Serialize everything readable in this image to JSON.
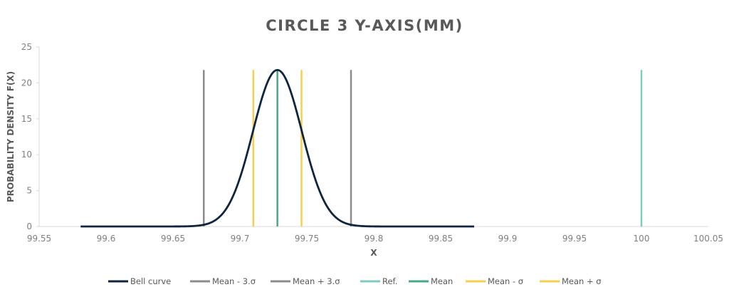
{
  "chart_data": {
    "type": "line",
    "title": "CIRCLE 3 Y-AXIS(MM)",
    "xlabel": "X",
    "ylabel": "PROBABILITY DENSITY F(X)",
    "xlim": [
      99.55,
      100.05
    ],
    "ylim": [
      0,
      25
    ],
    "xticks": [
      99.55,
      99.6,
      99.65,
      99.7,
      99.75,
      99.8,
      99.85,
      99.9,
      99.95,
      100,
      100.05
    ],
    "xtick_labels": [
      "99.55",
      "99.6",
      "99.65",
      "99.7",
      "99.75",
      "99.8",
      "99.85",
      "99.9",
      "99.95",
      "100",
      "100.05"
    ],
    "yticks": [
      0,
      5,
      10,
      15,
      20,
      25
    ],
    "ytick_labels": [
      "0",
      "5",
      "10",
      "15",
      "20",
      "25"
    ],
    "grid": false,
    "legend_position": "bottom",
    "bell_curve": {
      "name": "Bell curve",
      "mean": 99.728,
      "sigma": 0.0183,
      "x_range": [
        99.581,
        99.875
      ],
      "color": "#10263f"
    },
    "vertical_lines": [
      {
        "name": "Mean - 3.σ",
        "x": 99.673,
        "height": 21.8,
        "color": "#8c8c8c"
      },
      {
        "name": "Mean + 3.σ",
        "x": 99.783,
        "height": 21.8,
        "color": "#8c8c8c"
      },
      {
        "name": "Ref.",
        "x": 100,
        "height": 21.8,
        "color": "#7fcbc1"
      },
      {
        "name": "Mean",
        "x": 99.728,
        "height": 21.8,
        "color": "#4aa985"
      },
      {
        "name": "Mean - σ",
        "x": 99.71,
        "height": 21.8,
        "color": "#f6cf4e"
      },
      {
        "name": "Mean + σ",
        "x": 99.746,
        "height": 21.8,
        "color": "#f6cf4e"
      }
    ],
    "legend": [
      "Bell curve",
      "Mean - 3.σ",
      "Mean + 3.σ",
      "Ref.",
      "Mean",
      "Mean - σ",
      "Mean + σ"
    ]
  }
}
